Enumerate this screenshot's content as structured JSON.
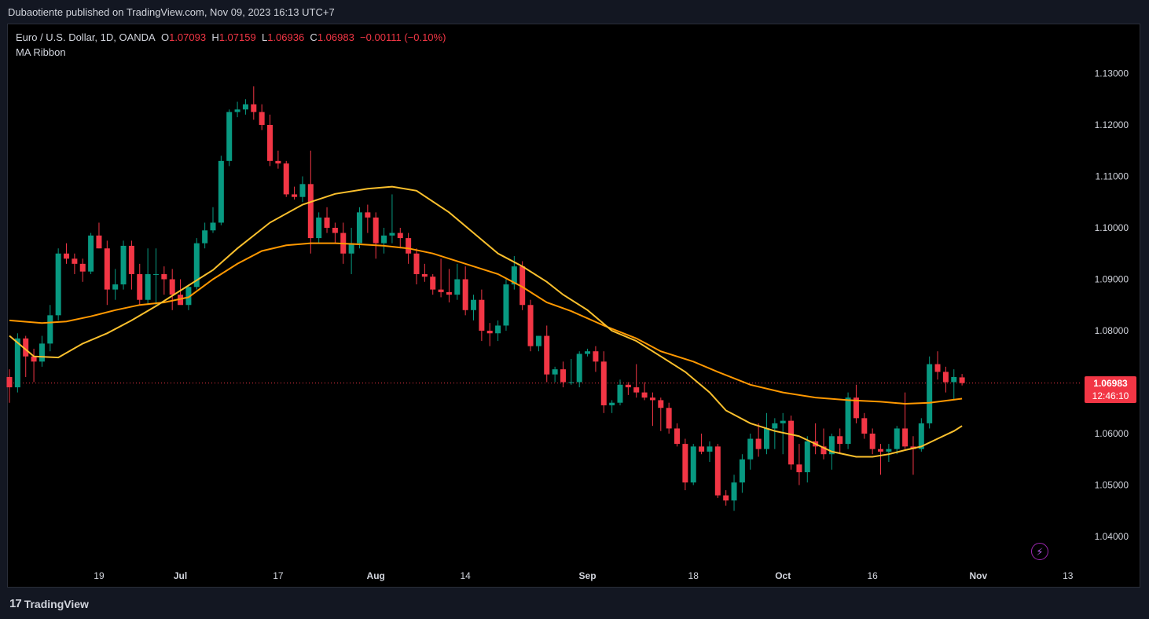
{
  "publisher": "Dubaotiente published on TradingView.com, Nov 09, 2023 16:13 UTC+7",
  "legend": {
    "symbol": "Euro / U.S. Dollar, 1D, OANDA",
    "o_label": "O",
    "o_value": "1.07093",
    "h_label": "H",
    "h_value": "1.07159",
    "l_label": "L",
    "l_value": "1.06936",
    "c_label": "C",
    "c_value": "1.06983",
    "change": "−0.00111 (−0.10%)",
    "indicator": "MA Ribbon"
  },
  "price_badge": {
    "price": "1.06983",
    "countdown": "12:46:10"
  },
  "footer": {
    "brand": "TradingView",
    "logo_icon": "tradingview-logo-icon"
  },
  "colors": {
    "up": "#089981",
    "down": "#f23645",
    "ma_fast": "#fbc02d",
    "ma_slow": "#ff9800",
    "background": "#000000"
  },
  "chart_data": {
    "type": "candlestick",
    "ylim": [
      1.035,
      1.135
    ],
    "y_ticks": [
      "1.13000",
      "1.12000",
      "1.11000",
      "1.10000",
      "1.09000",
      "1.08000",
      "1.06000",
      "1.05000",
      "1.04000"
    ],
    "x_ticks": [
      "19",
      "Jul",
      "17",
      "Aug",
      "14",
      "Sep",
      "18",
      "Oct",
      "16",
      "Nov",
      "13"
    ],
    "current_price": 1.06983,
    "candles": [
      [
        1.071,
        1.0725,
        1.066,
        1.069
      ],
      [
        1.069,
        1.0795,
        1.068,
        1.0785
      ],
      [
        1.0785,
        1.079,
        1.071,
        1.075
      ],
      [
        1.075,
        1.0765,
        1.07,
        1.074
      ],
      [
        1.074,
        1.079,
        1.073,
        1.0775
      ],
      [
        1.0775,
        1.085,
        1.076,
        1.083
      ],
      [
        1.083,
        1.096,
        1.082,
        1.095
      ],
      [
        1.095,
        1.097,
        1.093,
        1.094
      ],
      [
        1.094,
        1.095,
        1.091,
        1.093
      ],
      [
        1.093,
        1.094,
        1.0895,
        1.0915
      ],
      [
        1.0915,
        1.099,
        1.091,
        1.0985
      ],
      [
        1.0985,
        1.101,
        1.096,
        1.096
      ],
      [
        1.096,
        1.0975,
        1.085,
        1.088
      ],
      [
        1.088,
        1.092,
        1.086,
        1.089
      ],
      [
        1.089,
        1.0975,
        1.088,
        1.0965
      ],
      [
        1.0965,
        1.0975,
        1.088,
        1.091
      ],
      [
        1.091,
        1.093,
        1.085,
        1.086
      ],
      [
        1.086,
        1.096,
        1.085,
        1.091
      ],
      [
        1.091,
        1.096,
        1.085,
        1.091
      ],
      [
        1.091,
        1.0925,
        1.087,
        1.09
      ],
      [
        1.09,
        1.092,
        1.084,
        1.087
      ],
      [
        1.087,
        1.09,
        1.0855,
        1.085
      ],
      [
        1.085,
        1.089,
        1.084,
        1.0885
      ],
      [
        1.0885,
        1.098,
        1.088,
        1.097
      ],
      [
        1.097,
        1.101,
        1.096,
        1.0995
      ],
      [
        1.0995,
        1.104,
        1.099,
        1.101
      ],
      [
        1.101,
        1.114,
        1.1005,
        1.113
      ],
      [
        1.113,
        1.123,
        1.112,
        1.1225
      ],
      [
        1.1225,
        1.1245,
        1.1215,
        1.123
      ],
      [
        1.123,
        1.125,
        1.122,
        1.124
      ],
      [
        1.124,
        1.1275,
        1.121,
        1.1225
      ],
      [
        1.1225,
        1.124,
        1.119,
        1.12
      ],
      [
        1.12,
        1.122,
        1.112,
        1.113
      ],
      [
        1.113,
        1.115,
        1.1115,
        1.1125
      ],
      [
        1.1125,
        1.113,
        1.106,
        1.1065
      ],
      [
        1.1065,
        1.108,
        1.1055,
        1.106
      ],
      [
        1.106,
        1.11,
        1.105,
        1.1085
      ],
      [
        1.1085,
        1.115,
        1.095,
        1.098
      ],
      [
        1.098,
        1.103,
        1.097,
        1.102
      ],
      [
        1.102,
        1.104,
        1.099,
        1.1
      ],
      [
        1.1,
        1.101,
        1.097,
        1.099
      ],
      [
        1.099,
        1.101,
        1.093,
        1.095
      ],
      [
        1.095,
        1.1,
        1.091,
        1.097
      ],
      [
        1.097,
        1.104,
        1.096,
        1.103
      ],
      [
        1.103,
        1.1045,
        1.099,
        1.102
      ],
      [
        1.102,
        1.103,
        1.094,
        1.097
      ],
      [
        1.097,
        1.1,
        1.095,
        1.0985
      ],
      [
        1.0985,
        1.1065,
        1.097,
        1.099
      ],
      [
        1.099,
        1.1,
        1.096,
        1.098
      ],
      [
        1.098,
        1.099,
        1.093,
        1.095
      ],
      [
        1.095,
        1.096,
        1.089,
        1.091
      ],
      [
        1.091,
        1.093,
        1.0895,
        1.0905
      ],
      [
        1.0905,
        1.091,
        1.087,
        1.088
      ],
      [
        1.088,
        1.094,
        1.0865,
        1.0875
      ],
      [
        1.0875,
        1.092,
        1.0855,
        1.087
      ],
      [
        1.087,
        1.093,
        1.086,
        1.09
      ],
      [
        1.09,
        1.0925,
        1.083,
        1.084
      ],
      [
        1.084,
        1.087,
        1.082,
        1.086
      ],
      [
        1.086,
        1.088,
        1.078,
        1.08
      ],
      [
        1.08,
        1.0815,
        1.077,
        1.0795
      ],
      [
        1.0795,
        1.082,
        1.078,
        1.081
      ],
      [
        1.081,
        1.09,
        1.08,
        1.089
      ],
      [
        1.089,
        1.0945,
        1.088,
        1.0925
      ],
      [
        1.0925,
        1.0935,
        1.084,
        1.085
      ],
      [
        1.085,
        1.086,
        1.076,
        1.077
      ],
      [
        1.077,
        1.079,
        1.076,
        1.079
      ],
      [
        1.079,
        1.081,
        1.07,
        1.0715
      ],
      [
        1.0715,
        1.073,
        1.07,
        1.0725
      ],
      [
        1.0725,
        1.074,
        1.069,
        1.07
      ],
      [
        1.07,
        1.0745,
        1.0695,
        1.07
      ],
      [
        1.07,
        1.076,
        1.069,
        1.0755
      ],
      [
        1.0755,
        1.0765,
        1.075,
        1.076
      ],
      [
        1.076,
        1.077,
        1.072,
        1.074
      ],
      [
        1.074,
        1.076,
        1.064,
        1.0655
      ],
      [
        1.0655,
        1.0665,
        1.064,
        1.066
      ],
      [
        1.066,
        1.0705,
        1.0655,
        1.0695
      ],
      [
        1.0695,
        1.07,
        1.0675,
        1.069
      ],
      [
        1.069,
        1.0735,
        1.067,
        1.068
      ],
      [
        1.068,
        1.07,
        1.0665,
        1.067
      ],
      [
        1.067,
        1.068,
        1.0615,
        1.0665
      ],
      [
        1.0665,
        1.067,
        1.0605,
        1.065
      ],
      [
        1.065,
        1.066,
        1.06,
        1.061
      ],
      [
        1.061,
        1.062,
        1.0575,
        1.058
      ],
      [
        1.058,
        1.059,
        1.049,
        1.0505
      ],
      [
        1.0505,
        1.058,
        1.05,
        1.0575
      ],
      [
        1.0575,
        1.06,
        1.056,
        1.0565
      ],
      [
        1.0565,
        1.0585,
        1.0545,
        1.0575
      ],
      [
        1.0575,
        1.058,
        1.0475,
        1.048
      ],
      [
        1.048,
        1.049,
        1.046,
        1.047
      ],
      [
        1.047,
        1.052,
        1.045,
        1.0505
      ],
      [
        1.0505,
        1.056,
        1.0485,
        1.055
      ],
      [
        1.055,
        1.06,
        1.053,
        1.059
      ],
      [
        1.059,
        1.062,
        1.0555,
        1.057
      ],
      [
        1.057,
        1.064,
        1.056,
        1.061
      ],
      [
        1.061,
        1.063,
        1.057,
        1.062
      ],
      [
        1.062,
        1.064,
        1.056,
        1.0625
      ],
      [
        1.0625,
        1.0635,
        1.053,
        1.054
      ],
      [
        1.054,
        1.058,
        1.05,
        1.0525
      ],
      [
        1.0525,
        1.0595,
        1.0505,
        1.0585
      ],
      [
        1.0585,
        1.062,
        1.056,
        1.0575
      ],
      [
        1.0575,
        1.061,
        1.055,
        1.056
      ],
      [
        1.056,
        1.06,
        1.053,
        1.0595
      ],
      [
        1.0595,
        1.061,
        1.056,
        1.058
      ],
      [
        1.058,
        1.068,
        1.057,
        1.067
      ],
      [
        1.067,
        1.0695,
        1.062,
        1.063
      ],
      [
        1.063,
        1.064,
        1.059,
        1.06
      ],
      [
        1.06,
        1.061,
        1.056,
        1.057
      ],
      [
        1.057,
        1.058,
        1.052,
        1.0565
      ],
      [
        1.0565,
        1.058,
        1.0545,
        1.057
      ],
      [
        1.057,
        1.0615,
        1.056,
        1.061
      ],
      [
        1.061,
        1.068,
        1.057,
        1.0575
      ],
      [
        1.0575,
        1.0595,
        1.052,
        1.057
      ],
      [
        1.057,
        1.063,
        1.0565,
        1.062
      ],
      [
        1.062,
        1.075,
        1.061,
        1.0735
      ],
      [
        1.0735,
        1.076,
        1.0705,
        1.072
      ],
      [
        1.072,
        1.073,
        1.068,
        1.07
      ],
      [
        1.07,
        1.0725,
        1.0665,
        1.071
      ],
      [
        1.07093,
        1.07159,
        1.06936,
        1.06983
      ]
    ],
    "ma_fast": [
      [
        1.079,
        0
      ],
      [
        1.075,
        3
      ],
      [
        1.0748,
        6
      ],
      [
        1.0775,
        9
      ],
      [
        1.0795,
        12
      ],
      [
        1.082,
        15
      ],
      [
        1.0848,
        18
      ],
      [
        1.0878,
        21
      ],
      [
        1.0918,
        25
      ],
      [
        1.096,
        28
      ],
      [
        1.101,
        32
      ],
      [
        1.1045,
        36
      ],
      [
        1.1066,
        40
      ],
      [
        1.1076,
        44
      ],
      [
        1.108,
        47
      ],
      [
        1.1072,
        50
      ],
      [
        1.103,
        54
      ],
      [
        1.099,
        57
      ],
      [
        1.095,
        60
      ],
      [
        1.0925,
        63
      ],
      [
        1.0895,
        66
      ],
      [
        1.087,
        68
      ],
      [
        1.084,
        71
      ],
      [
        1.08,
        74
      ],
      [
        1.078,
        77
      ],
      [
        1.075,
        80
      ],
      [
        1.072,
        83
      ],
      [
        1.068,
        86
      ],
      [
        1.0645,
        88
      ],
      [
        1.062,
        91
      ],
      [
        1.0605,
        94
      ],
      [
        1.0595,
        97
      ],
      [
        1.058,
        99
      ],
      [
        1.0565,
        101
      ],
      [
        1.0555,
        104
      ],
      [
        1.0555,
        106
      ],
      [
        1.056,
        108
      ],
      [
        1.0568,
        110
      ],
      [
        1.0575,
        112
      ],
      [
        1.059,
        114
      ],
      [
        1.0605,
        116
      ],
      [
        1.0615,
        117
      ]
    ],
    "ma_slow": [
      [
        1.082,
        0
      ],
      [
        1.0815,
        4
      ],
      [
        1.0818,
        7
      ],
      [
        1.0828,
        10
      ],
      [
        1.084,
        13
      ],
      [
        1.085,
        16
      ],
      [
        1.0855,
        19
      ],
      [
        1.0865,
        22
      ],
      [
        1.09,
        25
      ],
      [
        1.093,
        28
      ],
      [
        1.0955,
        31
      ],
      [
        1.0966,
        34
      ],
      [
        1.097,
        37
      ],
      [
        1.097,
        40
      ],
      [
        1.0968,
        43
      ],
      [
        1.0965,
        46
      ],
      [
        1.096,
        49
      ],
      [
        1.095,
        52
      ],
      [
        1.093,
        56
      ],
      [
        1.091,
        60
      ],
      [
        1.0885,
        63
      ],
      [
        1.0855,
        66
      ],
      [
        1.0838,
        69
      ],
      [
        1.081,
        73
      ],
      [
        1.0785,
        77
      ],
      [
        1.076,
        80
      ],
      [
        1.074,
        84
      ],
      [
        1.072,
        87
      ],
      [
        1.0695,
        91
      ],
      [
        1.068,
        95
      ],
      [
        1.067,
        99
      ],
      [
        1.0665,
        103
      ],
      [
        1.0662,
        107
      ],
      [
        1.0658,
        110
      ],
      [
        1.066,
        113
      ],
      [
        1.0668,
        117
      ]
    ]
  }
}
